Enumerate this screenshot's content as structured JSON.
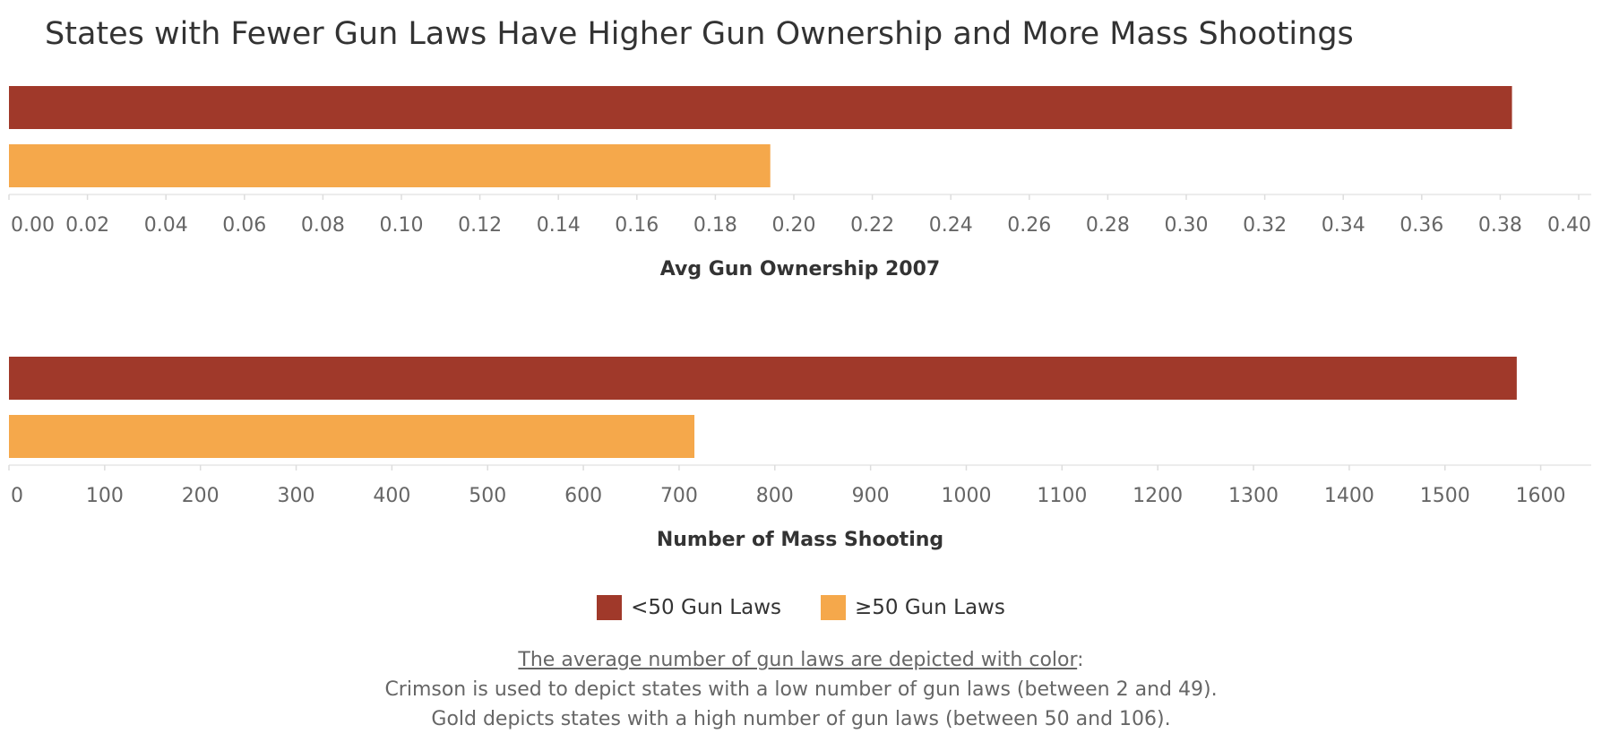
{
  "title": "States with Fewer Gun Laws Have Higher Gun Ownership and More Mass Shootings",
  "chart_data": [
    {
      "type": "bar",
      "orientation": "horizontal",
      "xlabel": "Avg Gun Ownership 2007",
      "xlim": [
        0,
        0.4
      ],
      "ticks": [
        "0.00",
        "0.02",
        "0.04",
        "0.06",
        "0.08",
        "0.10",
        "0.12",
        "0.14",
        "0.16",
        "0.18",
        "0.20",
        "0.22",
        "0.24",
        "0.26",
        "0.28",
        "0.30",
        "0.32",
        "0.34",
        "0.36",
        "0.38",
        "0.40"
      ],
      "tick_values": [
        0,
        0.02,
        0.04,
        0.06,
        0.08,
        0.1,
        0.12,
        0.14,
        0.16,
        0.18,
        0.2,
        0.22,
        0.24,
        0.26,
        0.28,
        0.3,
        0.32,
        0.34,
        0.36,
        0.38,
        0.4
      ],
      "categories": [
        "<50 Gun Laws",
        "≥50 Gun Laws"
      ],
      "values": [
        0.383,
        0.194
      ],
      "colors": [
        "#a0392a",
        "#f5a84b"
      ]
    },
    {
      "type": "bar",
      "orientation": "horizontal",
      "xlabel": "Number of Mass Shooting",
      "xlim": [
        0,
        1650
      ],
      "ticks": [
        "0",
        "100",
        "200",
        "300",
        "400",
        "500",
        "600",
        "700",
        "800",
        "900",
        "1000",
        "1100",
        "1200",
        "1300",
        "1400",
        "1500",
        "1600"
      ],
      "tick_values": [
        0,
        100,
        200,
        300,
        400,
        500,
        600,
        700,
        800,
        900,
        1000,
        1100,
        1200,
        1300,
        1400,
        1500,
        1600
      ],
      "categories": [
        "<50 Gun Laws",
        "≥50 Gun Laws"
      ],
      "values": [
        1575,
        716
      ],
      "colors": [
        "#a0392a",
        "#f5a84b"
      ]
    }
  ],
  "legend": [
    {
      "label": "<50 Gun Laws",
      "color": "#a0392a"
    },
    {
      "label": "≥50 Gun Laws",
      "color": "#f5a84b"
    }
  ],
  "caption": {
    "heading": "The average number of gun laws are depicted with color",
    "line1": "Crimson is used to depict states with a low number of gun laws (between 2 and 49).",
    "line2": "Gold depicts states with a high number of gun laws (between 50 and 106)."
  }
}
